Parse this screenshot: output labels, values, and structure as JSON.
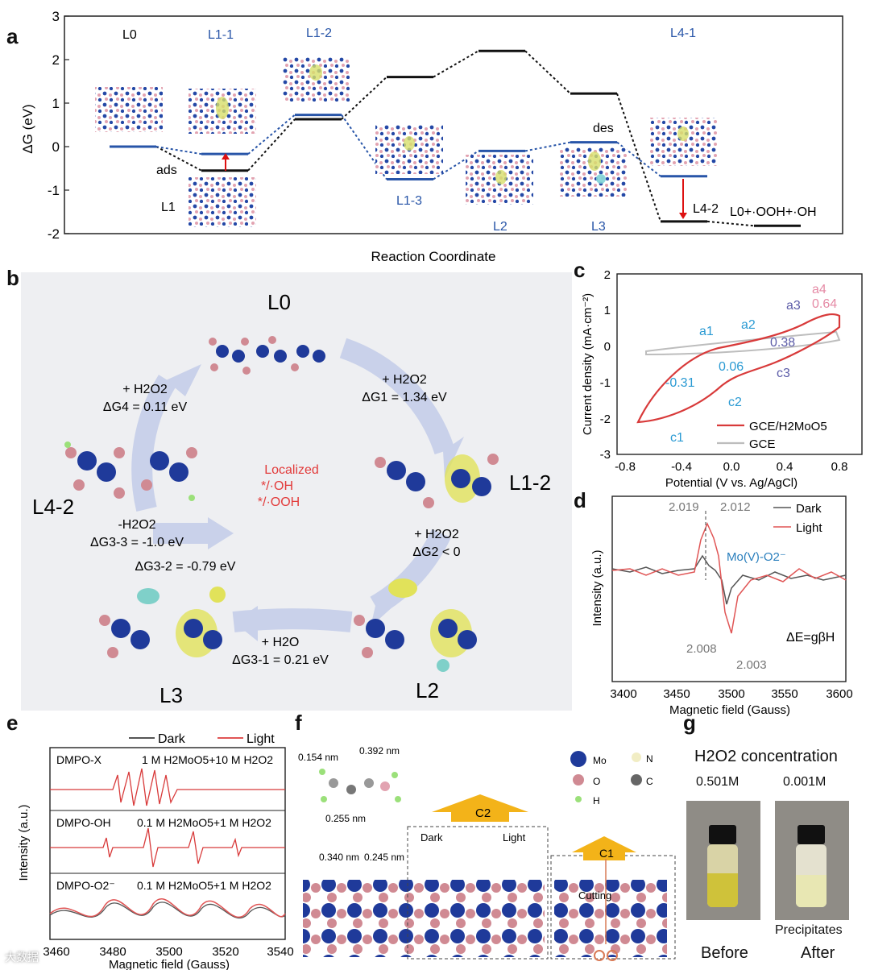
{
  "figure": {
    "panel_letters": {
      "a": "a",
      "b": "b",
      "c": "c",
      "d": "d",
      "e": "e",
      "f": "f",
      "g": "g"
    },
    "watermark": "大数据"
  },
  "panel_a": {
    "ylabel": "ΔG (eV)",
    "xlabel": "Reaction Coordinate",
    "yticks": [
      "3",
      "2",
      "1",
      "0",
      "-1",
      "-2"
    ],
    "state_labels": {
      "L0": "L0",
      "L1": "L1",
      "L1_1": "L1-1",
      "L1_2": "L1-2",
      "L1_3": "L1-3",
      "L2": "L2",
      "L3": "L3",
      "L4_1": "L4-1",
      "L4_2": "L4-2",
      "final": "L0+·OOH+·OH",
      "ads": "ads",
      "des": "des"
    },
    "black_path": [
      0,
      -0.55,
      0.63,
      1.6,
      2.2,
      1.22,
      -1.72,
      -1.82
    ],
    "blue_path": [
      0,
      -0.17,
      0.73,
      -0.75,
      -0.1,
      0.1,
      -0.68,
      -1.72
    ]
  },
  "panel_b": {
    "nodes": {
      "L0": "L0",
      "L1_2": "L1-2",
      "L2": "L2",
      "L3": "L3",
      "L4_2": "L4-2"
    },
    "center": {
      "line1": "Localized",
      "line2": "*/·OH",
      "line3": "*/·OOH"
    },
    "steps": {
      "s1_a": "+ H2O2",
      "s1_b": "ΔG1 = 1.34 eV",
      "s2_a": "+ H2O2",
      "s2_b": "ΔG2 < 0",
      "s31_a": "+ H2O",
      "s31_b": "ΔG3-1 = 0.21 eV",
      "s32": "ΔG3-2 = -0.79 eV",
      "s33_a": "-H2O2",
      "s33_b": "ΔG3-3 = -1.0 eV",
      "s4_a": "+ H2O2",
      "s4_b": "ΔG4 = 0.11 eV"
    }
  },
  "panel_c": {
    "xlabel": "Potential (V vs. Ag/AgCl)",
    "ylabel": "Current density (mA·cm⁻²)",
    "xticks": [
      "-0.8",
      "-0.4",
      "0.0",
      "0.4",
      "0.8"
    ],
    "yticks": [
      "2",
      "1",
      "0",
      "-1",
      "-2",
      "-3"
    ],
    "legend": [
      "GCE/H2MoO5",
      "GCE"
    ],
    "peaks": {
      "a1": "a1",
      "a2": "a2",
      "a3": "a3",
      "a4": "a4",
      "c1": "c1",
      "c2": "c2",
      "c3": "c3"
    },
    "values": {
      "v1": "-0.31",
      "v2": "0.06",
      "v3": "0.38",
      "v4": "0.64"
    }
  },
  "panel_d": {
    "xlabel": "Magnetic field (Gauss)",
    "ylabel": "Intensity (a.u.)",
    "xticks": [
      "3400",
      "3450",
      "3500",
      "3550",
      "3600"
    ],
    "legend": [
      "Dark",
      "Light"
    ],
    "g": {
      "g1": "2.019",
      "g2": "2.012",
      "g3": "2.008",
      "g4": "2.003"
    },
    "species": "Mo(V)-O2⁻",
    "equation": "ΔE=gβH"
  },
  "panel_e": {
    "xlabel": "Magnetic field (Gauss)",
    "ylabel": "Intensity (a.u.)",
    "xticks": [
      "3460",
      "3480",
      "3500",
      "3520",
      "3540"
    ],
    "legend": [
      "Dark",
      "Light"
    ],
    "rows": [
      {
        "name": "DMPO-X",
        "cond": "1 M H2MoO5+10 M H2O2"
      },
      {
        "name": "DMPO-OH",
        "cond": "0.1 M H2MoO5+1 M H2O2"
      },
      {
        "name": "DMPO-O2⁻",
        "cond": "0.1 M H2MoO5+1 M H2O2"
      }
    ]
  },
  "panel_f": {
    "dims": {
      "d1": "0.154 nm",
      "d2": "0.392 nm",
      "d3": "0.255 nm",
      "d4": "0.340 nm",
      "d5": "0.245 nm"
    },
    "legend": {
      "Mo": "Mo",
      "N": "N",
      "O": "O",
      "C": "C",
      "H": "H"
    },
    "labels": {
      "c2": "C2",
      "c1": "C1",
      "dark": "Dark",
      "light": "Light",
      "cutting": "Cutting"
    }
  },
  "panel_g": {
    "title": "H2O2 concentration",
    "conc_before": "0.501M",
    "conc_after": "0.001M",
    "precipitates": "Precipitates",
    "before": "Before",
    "after": "After"
  }
}
